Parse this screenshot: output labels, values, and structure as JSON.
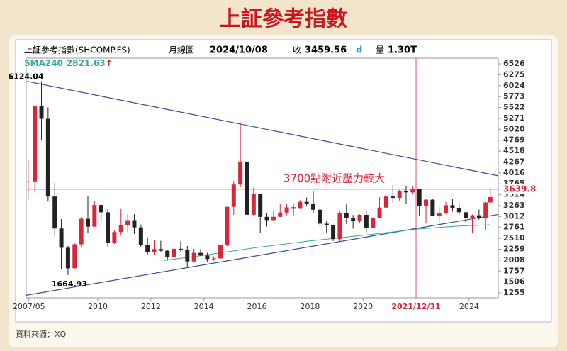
{
  "chart_data": {
    "type": "candlestick",
    "title": "上証參考指數",
    "info": [
      "上証參考指數(SHCOMP.FS)",
      "月線圖",
      "2024/10/08",
      "收",
      "3459.56",
      "d",
      "量",
      "1.30T"
    ],
    "sma": {
      "name": "SMA240",
      "last": 2821.63,
      "arrow": "↑",
      "color": "#3aa59b",
      "x": [
        2012.5,
        2014,
        2016,
        2018,
        2020,
        2022,
        2023.5,
        2024.8
      ],
      "values": [
        2000,
        2120,
        2300,
        2450,
        2580,
        2720,
        2790,
        2821.63
      ]
    },
    "annotation": "3700點附近壓力較大",
    "extreme_labels": {
      "max": "6124.04",
      "min": "1664.93"
    },
    "source": "資料來源：XQ",
    "up_color": "#d8263b",
    "down_color": "#222222",
    "x": [
      2007.375,
      2007.625,
      2007.875,
      2008.125,
      2008.375,
      2008.625,
      2008.875,
      2009.125,
      2009.375,
      2009.625,
      2009.875,
      2010.125,
      2010.375,
      2010.625,
      2010.875,
      2011.125,
      2011.375,
      2011.625,
      2011.875,
      2012.125,
      2012.375,
      2012.625,
      2012.875,
      2013.125,
      2013.375,
      2013.625,
      2013.875,
      2014.125,
      2014.375,
      2014.625,
      2014.875,
      2015.125,
      2015.375,
      2015.625,
      2015.875,
      2016.125,
      2016.375,
      2016.625,
      2016.875,
      2017.125,
      2017.375,
      2017.625,
      2017.875,
      2018.125,
      2018.375,
      2018.625,
      2018.875,
      2019.125,
      2019.375,
      2019.625,
      2019.875,
      2020.125,
      2020.375,
      2020.625,
      2020.875,
      2021.125,
      2021.375,
      2021.625,
      2021.875,
      2022.125,
      2022.375,
      2022.625,
      2022.875,
      2023.125,
      2023.375,
      2023.625,
      2023.875,
      2024.125,
      2024.375,
      2024.625,
      2024.8
    ],
    "open": [
      3800,
      3820,
      5552,
      5261,
      3472,
      2736,
      2293,
      1821,
      2373,
      2959,
      2779,
      3277,
      3109,
      2398,
      2655,
      2808,
      2928,
      2762,
      2359,
      2199,
      2263,
      2225,
      2086,
      2269,
      2237,
      1979,
      2175,
      2116,
      2033,
      2048,
      2364,
      3235,
      3748,
      4277,
      3053,
      3539,
      3004,
      2930,
      3005,
      3104,
      3223,
      3192,
      3349,
      3307,
      3169,
      2847,
      2821,
      2494,
      3091,
      2979,
      2905,
      3050,
      2750,
      2985,
      3218,
      3473,
      3441,
      3591,
      3568,
      3640,
      3252,
      3399,
      3024,
      3089,
      3273,
      3202,
      3110,
      2975,
      3041,
      2967,
      3336
    ],
    "high": [
      4335,
      5555,
      6124.04,
      5522,
      3786,
      2952,
      2333,
      2402,
      3000,
      3478,
      3361,
      3306,
      3181,
      2700,
      3186,
      3067,
      3067,
      2826,
      2536,
      2478,
      2453,
      2243,
      2276,
      2444,
      2334,
      2270,
      2260,
      2177,
      2098,
      2367,
      3239,
      3835,
      5178,
      4317,
      3684,
      3539,
      3097,
      3140,
      3301,
      3301,
      3295,
      3391,
      3450,
      3587,
      3220,
      2915,
      2828,
      3129,
      3288,
      3048,
      3064,
      3127,
      2990,
      3458,
      3474,
      3731,
      3624,
      3722,
      3708,
      3651,
      3410,
      3424,
      3235,
      3350,
      3418,
      3322,
      3114,
      3058,
      3174,
      3348,
      3674
    ],
    "low": [
      3404,
      3563,
      4778,
      3357,
      2566,
      1802,
      1664.93,
      1814,
      2320,
      2639,
      2772,
      2890,
      2319,
      2382,
      2574,
      2661,
      2610,
      2307,
      2134,
      2132,
      2195,
      1999,
      1949,
      2205,
      1849,
      1951,
      2101,
      1975,
      1991,
      2042,
      2328,
      3049,
      3684,
      2850,
      3023,
      2638,
      2781,
      2913,
      3000,
      3044,
      3016,
      3184,
      3254,
      3091,
      2782,
      2644,
      2449,
      2440,
      2838,
      2733,
      2857,
      2646,
      2742,
      2984,
      3200,
      3328,
      3381,
      3312,
      3516,
      3023,
      2863,
      3021,
      2886,
      3063,
      3124,
      3053,
      2882,
      2635,
      2941,
      2689,
      3300
    ],
    "close": [
      3820,
      5552,
      5261,
      3472,
      2736,
      2293,
      1821,
      2373,
      2959,
      2779,
      3277,
      3109,
      2398,
      2655,
      2808,
      2928,
      2762,
      2359,
      2199,
      2263,
      2225,
      2086,
      2269,
      2237,
      1979,
      2175,
      2116,
      2033,
      2048,
      2364,
      3235,
      3748,
      4277,
      3053,
      3539,
      3004,
      2930,
      3005,
      3104,
      3223,
      3192,
      3349,
      3307,
      3169,
      2847,
      2821,
      2494,
      3091,
      2979,
      2905,
      3050,
      2750,
      2985,
      3218,
      3473,
      3441,
      3591,
      3568,
      3640,
      3252,
      3399,
      3024,
      3089,
      3273,
      3202,
      3110,
      2975,
      3041,
      2967,
      3336,
      3459.56
    ],
    "trendlines": [
      {
        "x": [
          2007.33,
          2025.1
        ],
        "values": [
          6124.04,
          3950
        ],
        "color": "#3b4a9a"
      },
      {
        "x": [
          2007.3,
          2025.1
        ],
        "values": [
          1200,
          3060
        ],
        "color": "#3b4a9a"
      }
    ],
    "hline": {
      "value": 3639.8,
      "color": "#d8263b"
    },
    "vline": {
      "value": 2022.0,
      "label": "2021/12/31",
      "color": "#d8263b"
    },
    "xlim": [
      2007.3,
      2025.1
    ],
    "ylim": [
      1141,
      6657
    ],
    "xticks": [
      {
        "value": 2007.4,
        "label": "2007/05"
      },
      2010,
      2012,
      2014,
      2016,
      2018,
      2020,
      2024
    ],
    "yticks": [
      1255,
      1506,
      1757,
      2008,
      2259,
      2510,
      2761,
      3012,
      3263,
      3514,
      3765,
      4016,
      4267,
      4518,
      4769,
      5020,
      5271,
      5522,
      5773,
      6024,
      6275,
      6526
    ]
  }
}
